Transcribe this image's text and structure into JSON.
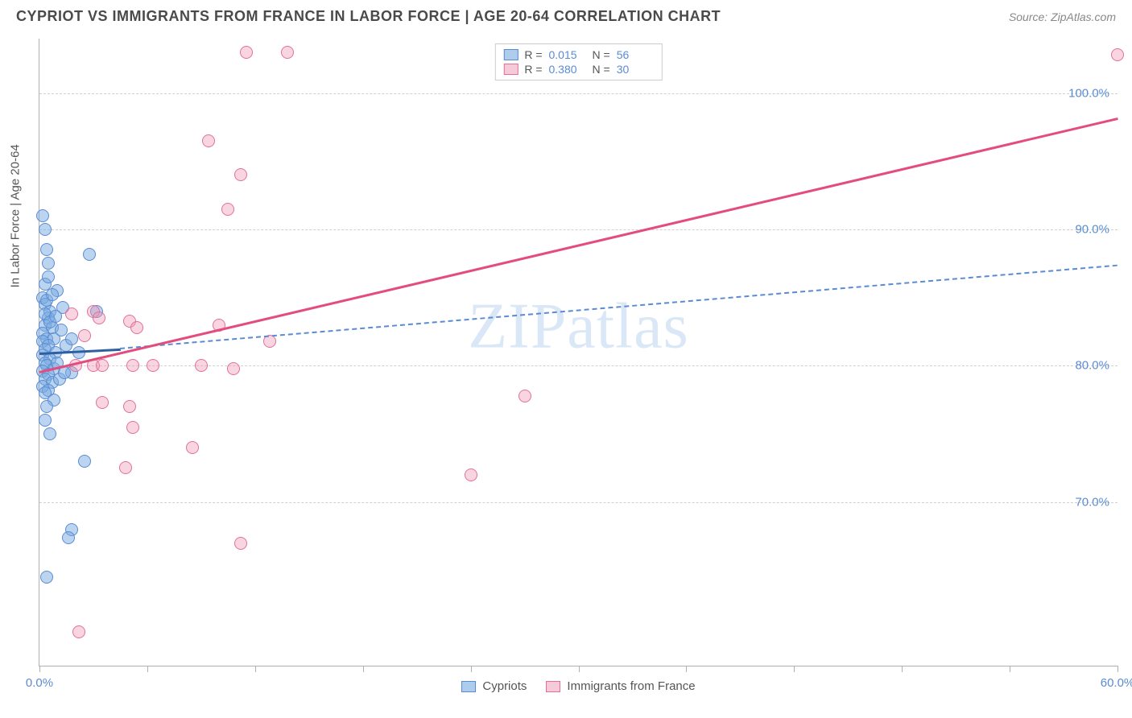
{
  "title": "CYPRIOT VS IMMIGRANTS FROM FRANCE IN LABOR FORCE | AGE 20-64 CORRELATION CHART",
  "source": "Source: ZipAtlas.com",
  "watermark": "ZIPatlas",
  "chart": {
    "type": "scatter",
    "background_color": "#ffffff",
    "grid_color": "#d0d0d0",
    "axis_color": "#b0b0b0",
    "y_axis_title": "In Labor Force | Age 20-64",
    "xlim": [
      0,
      60
    ],
    "ylim": [
      58,
      104
    ],
    "x_ticks": [
      0,
      6,
      12,
      18,
      24,
      30,
      36,
      42,
      48,
      54,
      60
    ],
    "x_tick_labels": {
      "0": "0.0%",
      "60": "60.0%"
    },
    "y_ticks": [
      70,
      80,
      90,
      100
    ],
    "y_tick_labels": {
      "70": "70.0%",
      "80": "80.0%",
      "90": "90.0%",
      "100": "100.0%"
    },
    "label_color": "#5b8bd4",
    "label_fontsize": 15,
    "marker_radius": 8,
    "series": {
      "blue": {
        "name": "Cypriots",
        "fill_color": "rgba(120,170,224,0.5)",
        "stroke_color": "#5b8bd4",
        "R": "0.015",
        "N": "56",
        "trend_solid": {
          "x1": 0,
          "y1": 81.0,
          "x2": 4.5,
          "y2": 81.3,
          "color": "#2e5fa3",
          "width": 3
        },
        "trend_dash": {
          "x1": 4.5,
          "y1": 81.3,
          "x2": 60,
          "y2": 87.4,
          "color": "#5b8bd4",
          "width": 2
        },
        "points": [
          [
            0.2,
            91.0
          ],
          [
            0.3,
            90.0
          ],
          [
            0.4,
            88.5
          ],
          [
            0.5,
            87.5
          ],
          [
            0.2,
            85.0
          ],
          [
            0.3,
            84.5
          ],
          [
            0.6,
            84.0
          ],
          [
            2.8,
            88.2
          ],
          [
            1.0,
            85.5
          ],
          [
            1.3,
            84.3
          ],
          [
            3.2,
            84.0
          ],
          [
            0.5,
            83.5
          ],
          [
            0.3,
            83.0
          ],
          [
            0.7,
            82.8
          ],
          [
            0.2,
            82.4
          ],
          [
            0.4,
            82.0
          ],
          [
            0.8,
            82.0
          ],
          [
            0.2,
            81.8
          ],
          [
            0.5,
            81.5
          ],
          [
            0.3,
            81.2
          ],
          [
            0.9,
            81.0
          ],
          [
            0.2,
            80.8
          ],
          [
            0.6,
            80.5
          ],
          [
            0.3,
            80.2
          ],
          [
            0.4,
            80.0
          ],
          [
            0.8,
            79.8
          ],
          [
            0.2,
            79.6
          ],
          [
            0.5,
            79.4
          ],
          [
            1.5,
            81.5
          ],
          [
            1.8,
            82.0
          ],
          [
            2.2,
            81.0
          ],
          [
            0.3,
            79.0
          ],
          [
            0.7,
            78.8
          ],
          [
            0.2,
            78.5
          ],
          [
            0.5,
            78.2
          ],
          [
            0.3,
            78.0
          ],
          [
            0.8,
            77.5
          ],
          [
            0.4,
            77.0
          ],
          [
            1.8,
            79.5
          ],
          [
            1.1,
            79.0
          ],
          [
            1.4,
            79.5
          ],
          [
            0.3,
            76.0
          ],
          [
            0.6,
            75.0
          ],
          [
            2.5,
            73.0
          ],
          [
            1.8,
            68.0
          ],
          [
            1.6,
            67.4
          ],
          [
            0.4,
            64.5
          ],
          [
            0.3,
            83.8
          ],
          [
            0.6,
            83.2
          ],
          [
            0.9,
            83.6
          ],
          [
            1.2,
            82.6
          ],
          [
            0.4,
            84.8
          ],
          [
            0.7,
            85.2
          ],
          [
            0.3,
            86.0
          ],
          [
            0.5,
            86.5
          ],
          [
            1.0,
            80.2
          ]
        ]
      },
      "pink": {
        "name": "Immigrants from France",
        "fill_color": "rgba(240,150,180,0.4)",
        "stroke_color": "#e36f9a",
        "R": "0.380",
        "N": "30",
        "trend_solid": {
          "x1": 0,
          "y1": 79.6,
          "x2": 60,
          "y2": 98.2,
          "color": "#e34d7d",
          "width": 3
        },
        "points": [
          [
            11.5,
            103.0
          ],
          [
            13.8,
            103.0
          ],
          [
            60.0,
            102.8
          ],
          [
            9.4,
            96.5
          ],
          [
            11.2,
            94.0
          ],
          [
            10.5,
            91.5
          ],
          [
            3.0,
            84.0
          ],
          [
            3.3,
            83.5
          ],
          [
            5.0,
            83.3
          ],
          [
            5.4,
            82.8
          ],
          [
            10.0,
            83.0
          ],
          [
            12.8,
            81.8
          ],
          [
            2.0,
            80.0
          ],
          [
            3.0,
            80.0
          ],
          [
            3.5,
            80.0
          ],
          [
            5.2,
            80.0
          ],
          [
            6.3,
            80.0
          ],
          [
            9.0,
            80.0
          ],
          [
            10.8,
            79.8
          ],
          [
            3.5,
            77.3
          ],
          [
            5.0,
            77.0
          ],
          [
            27.0,
            77.8
          ],
          [
            5.2,
            75.5
          ],
          [
            8.5,
            74.0
          ],
          [
            4.8,
            72.5
          ],
          [
            24.0,
            72.0
          ],
          [
            11.2,
            67.0
          ],
          [
            2.2,
            60.5
          ],
          [
            1.8,
            83.8
          ],
          [
            2.5,
            82.2
          ]
        ]
      }
    },
    "legend_top": {
      "R_label": "R =",
      "N_label": "N ="
    },
    "legend_bottom": [
      {
        "swatch": "blue",
        "label": "Cypriots"
      },
      {
        "swatch": "pink",
        "label": "Immigrants from France"
      }
    ]
  }
}
